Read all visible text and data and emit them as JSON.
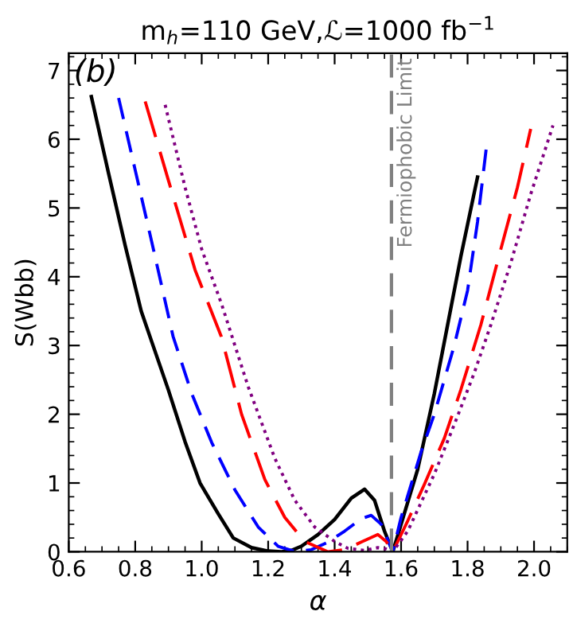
{
  "chart_data": {
    "type": "line",
    "title": "m$_{h}$=110 GeV,ℒ=1000 fb$^{−1}$",
    "xlabel": "α",
    "ylabel": "S(Wbb)",
    "annotations": [
      "(b)"
    ],
    "xlim": [
      0.6,
      2.1
    ],
    "ylim": [
      0,
      7.25
    ],
    "xticks": [
      0.6,
      0.8,
      {
        "value": 1.0,
        "label": "1.0"
      },
      1.2,
      1.4,
      1.6,
      1.8,
      {
        "value": 2.0,
        "label": "2.0"
      }
    ],
    "yticks": [
      0,
      1,
      2,
      3,
      4,
      5,
      6,
      7
    ],
    "grid": false,
    "legend": false,
    "marker": "none",
    "ref_lines": [
      {
        "axis": "x",
        "value": 1.571,
        "label": "Fermiophobic Limit",
        "color": "#808080",
        "line_style": "dashed"
      }
    ],
    "series": [
      {
        "color": "#000000",
        "line_style": "solid",
        "x": [
          0.668,
          0.72,
          0.77,
          0.818,
          0.85,
          0.9,
          0.95,
          0.995,
          1.05,
          1.095,
          1.15,
          1.2,
          1.24,
          1.27,
          1.3,
          1.35,
          1.4,
          1.45,
          1.49,
          1.52,
          1.55,
          1.575,
          1.6,
          1.65,
          1.7,
          1.74,
          1.78,
          1.83
        ],
        "values": [
          6.62,
          5.5,
          4.45,
          3.5,
          3.05,
          2.35,
          1.6,
          1.0,
          0.55,
          0.2,
          0.06,
          0.01,
          0,
          0.02,
          0.08,
          0.25,
          0.47,
          0.78,
          0.91,
          0.75,
          0.3,
          0,
          0.4,
          1.2,
          2.3,
          3.3,
          4.3,
          5.45
        ]
      },
      {
        "color": "#0000ff",
        "line_style": "dashed",
        "x": [
          0.75,
          0.8,
          0.85,
          0.914,
          0.97,
          1.03,
          1.1,
          1.17,
          1.23,
          1.284,
          1.33,
          1.38,
          1.43,
          1.48,
          1.51,
          1.54,
          1.575,
          1.6,
          1.66,
          1.7,
          1.76,
          1.8,
          1.83,
          1.857
        ],
        "values": [
          6.6,
          5.55,
          4.5,
          3.13,
          2.3,
          1.59,
          0.9,
          0.36,
          0.08,
          0,
          0.03,
          0.14,
          0.3,
          0.48,
          0.53,
          0.4,
          0,
          0.5,
          1.45,
          2.0,
          3.0,
          3.8,
          4.8,
          5.9
        ]
      },
      {
        "color": "#ff0000",
        "line_style": "dashed",
        "x": [
          0.83,
          0.9,
          0.98,
          1.059,
          1.12,
          1.19,
          1.25,
          1.31,
          1.38,
          1.43,
          1.48,
          1.53,
          1.555,
          1.575,
          1.62,
          1.67,
          1.73,
          1.78,
          1.84,
          1.9,
          1.95,
          1.99
        ],
        "values": [
          6.55,
          5.4,
          4.1,
          3.13,
          2.0,
          1.05,
          0.5,
          0.15,
          0,
          0.03,
          0.14,
          0.25,
          0.15,
          0,
          0.45,
          0.98,
          1.65,
          2.36,
          3.3,
          4.4,
          5.3,
          6.15
        ]
      },
      {
        "color": "#800080",
        "line_style": "dotted",
        "x": [
          0.89,
          0.95,
          1.0,
          1.06,
          1.14,
          1.22,
          1.28,
          1.34,
          1.4,
          1.44,
          1.49,
          1.53,
          1.555,
          1.575,
          1.62,
          1.7,
          1.76,
          1.82,
          1.87,
          1.93,
          1.99,
          2.057
        ],
        "values": [
          6.5,
          5.3,
          4.4,
          3.6,
          2.4,
          1.36,
          0.75,
          0.36,
          0.15,
          0.05,
          0.02,
          0.06,
          0.04,
          0,
          0.3,
          1.13,
          1.85,
          2.6,
          3.3,
          4.2,
          5.2,
          6.2
        ]
      }
    ]
  }
}
